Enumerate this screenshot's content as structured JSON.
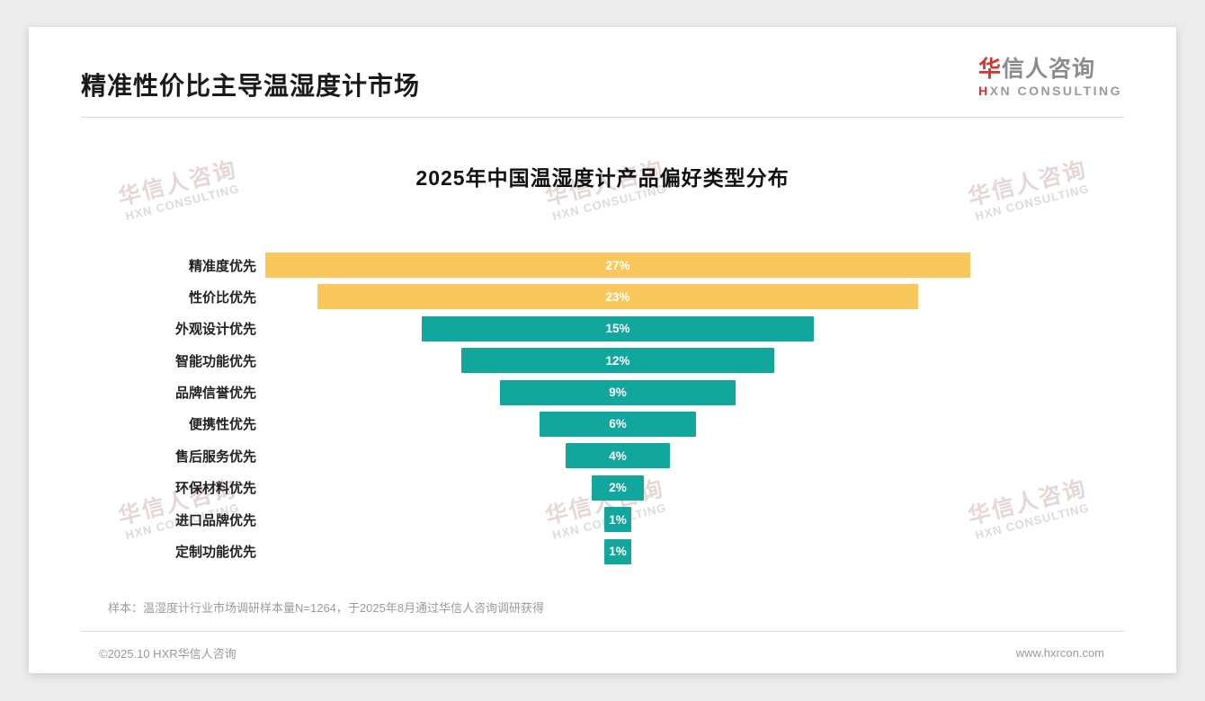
{
  "page": {
    "heading": "精准性价比主导温湿度计市场",
    "logo": {
      "brand_first_char": "华",
      "brand_rest": "信人咨询",
      "sub_first_char": "H",
      "sub_rest": "XN CONSULTING"
    },
    "watermark": {
      "line1": "华信人咨询",
      "line2": "HXN CONSULTING"
    },
    "footnote": "样本：温湿度计行业市场调研样本量N=1264，于2025年8月通过华信人咨询调研获得",
    "footer": {
      "left": "©2025.10 HXR华信人咨询",
      "right": "www.hxrcon.com"
    }
  },
  "chart_data": {
    "type": "bar",
    "variant": "horizontal-centered-funnel",
    "title": "2025年中国温湿度计产品偏好类型分布",
    "categories": [
      "精准度优先",
      "性价比优先",
      "外观设计优先",
      "智能功能优先",
      "品牌信誉优先",
      "便携性优先",
      "售后服务优先",
      "环保材料优先",
      "进口品牌优先",
      "定制功能优先"
    ],
    "values": [
      27,
      23,
      15,
      12,
      9,
      6,
      4,
      2,
      1,
      1
    ],
    "value_labels": [
      "27%",
      "23%",
      "15%",
      "12%",
      "9%",
      "6%",
      "4%",
      "2%",
      "1%",
      "1%"
    ],
    "unit": "%",
    "xlim": [
      0,
      27
    ],
    "highlight_color": "#F9C75B",
    "default_color": "#12A79D",
    "bar_colors": [
      "#F9C75B",
      "#F9C75B",
      "#12A79D",
      "#12A79D",
      "#12A79D",
      "#12A79D",
      "#12A79D",
      "#12A79D",
      "#12A79D",
      "#12A79D"
    ],
    "value_text_color": "#FFFFFF",
    "legend": "none",
    "grid": "off"
  }
}
